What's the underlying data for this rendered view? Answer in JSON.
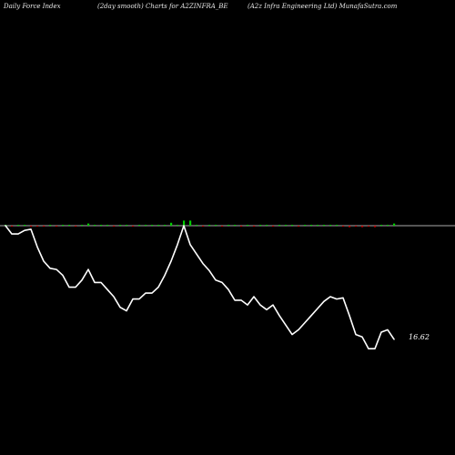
{
  "header": {
    "left": "Daily Force  Index",
    "center": "(2day smooth) Charts for A2ZINFRA_BE",
    "right": "(A2z Infra  Engineering Ltd) MunafaSutra.com"
  },
  "chart_data": {
    "type": "line",
    "title": "(2day smooth) Charts for A2ZINFRA_BE",
    "subtitle": "(A2z Infra  Engineering Ltd) MunafaSutra.com",
    "xlabel": "",
    "ylabel": "",
    "grid": false,
    "zero_line_color": "#aaaaaa",
    "series": [
      {
        "color": "#ffffff",
        "values": [
          0.0,
          -3.5,
          -3.5,
          -2.0,
          -1.5,
          -9.0,
          -15.0,
          -18.0,
          -18.5,
          -21.0,
          -26.0,
          -26.0,
          -23.0,
          -18.5,
          -24.0,
          -24.0,
          -27.0,
          -30.0,
          -34.5,
          -36.0,
          -31.0,
          -31.0,
          -28.5,
          -28.5,
          -26.0,
          -21.0,
          -15.0,
          -8.0,
          0.0,
          -8.0,
          -12.0,
          -16.0,
          -19.0,
          -23.0,
          -24.0,
          -27.0,
          -31.5,
          -31.5,
          -33.5,
          -30.0,
          -33.5,
          -35.5,
          -33.5,
          -38.0,
          -42.0,
          -46.0,
          -44.0,
          -41.0,
          -38.0,
          -35.0,
          -32.0,
          -30.0,
          -31.0,
          -30.5,
          -38.0,
          -46.0,
          -47.0,
          -52.0,
          -52.0,
          -45.0,
          -44.0,
          -48.0
        ]
      }
    ],
    "volume_marks": [
      {
        "v": 0.5,
        "c": "#00cc00"
      },
      {
        "v": -0.5,
        "c": "#cc0000"
      },
      {
        "v": 0.5,
        "c": "#00cc00"
      },
      {
        "v": 0.5,
        "c": "#00cc00"
      },
      {
        "v": -0.5,
        "c": "#cc0000"
      },
      {
        "v": -0.5,
        "c": "#cc0000"
      },
      {
        "v": -0.5,
        "c": "#cc0000"
      },
      {
        "v": 0.5,
        "c": "#00cc00"
      },
      {
        "v": -0.5,
        "c": "#cc0000"
      },
      {
        "v": 0.5,
        "c": "#00cc00"
      },
      {
        "v": 0.5,
        "c": "#00cc00"
      },
      {
        "v": -0.5,
        "c": "#cc0000"
      },
      {
        "v": 0.5,
        "c": "#00cc00"
      },
      {
        "v": 1.5,
        "c": "#00cc00"
      },
      {
        "v": 0.5,
        "c": "#00cc00"
      },
      {
        "v": 0.5,
        "c": "#00cc00"
      },
      {
        "v": 0.5,
        "c": "#00cc00"
      },
      {
        "v": -0.5,
        "c": "#cc0000"
      },
      {
        "v": 0.5,
        "c": "#00cc00"
      },
      {
        "v": 0.5,
        "c": "#00cc00"
      },
      {
        "v": -0.5,
        "c": "#cc0000"
      },
      {
        "v": 0.5,
        "c": "#00cc00"
      },
      {
        "v": 0.5,
        "c": "#00cc00"
      },
      {
        "v": 0.5,
        "c": "#00cc00"
      },
      {
        "v": 0.5,
        "c": "#00cc00"
      },
      {
        "v": 0.5,
        "c": "#00cc00"
      },
      {
        "v": 2.0,
        "c": "#00cc00"
      },
      {
        "v": 0.5,
        "c": "#00cc00"
      },
      {
        "v": 3.5,
        "c": "#00cc00"
      },
      {
        "v": 3.5,
        "c": "#00cc00"
      },
      {
        "v": 0.5,
        "c": "#00cc00"
      },
      {
        "v": -0.5,
        "c": "#cc0000"
      },
      {
        "v": 0.5,
        "c": "#00cc00"
      },
      {
        "v": 0.5,
        "c": "#00cc00"
      },
      {
        "v": -0.5,
        "c": "#cc0000"
      },
      {
        "v": 0.5,
        "c": "#00cc00"
      },
      {
        "v": 0.5,
        "c": "#00cc00"
      },
      {
        "v": -0.5,
        "c": "#cc0000"
      },
      {
        "v": 0.5,
        "c": "#00cc00"
      },
      {
        "v": -0.5,
        "c": "#cc0000"
      },
      {
        "v": 0.5,
        "c": "#00cc00"
      },
      {
        "v": 0.5,
        "c": "#00cc00"
      },
      {
        "v": -0.5,
        "c": "#cc0000"
      },
      {
        "v": 0.5,
        "c": "#00cc00"
      },
      {
        "v": 0.5,
        "c": "#00cc00"
      },
      {
        "v": 0.5,
        "c": "#00cc00"
      },
      {
        "v": -0.5,
        "c": "#cc0000"
      },
      {
        "v": 0.5,
        "c": "#00cc00"
      },
      {
        "v": 0.5,
        "c": "#00cc00"
      },
      {
        "v": 0.5,
        "c": "#00cc00"
      },
      {
        "v": 0.5,
        "c": "#00cc00"
      },
      {
        "v": 0.5,
        "c": "#00cc00"
      },
      {
        "v": 0.5,
        "c": "#00cc00"
      },
      {
        "v": -0.5,
        "c": "#cc0000"
      },
      {
        "v": -1.0,
        "c": "#cc0000"
      },
      {
        "v": -0.5,
        "c": "#cc0000"
      },
      {
        "v": -1.0,
        "c": "#cc0000"
      },
      {
        "v": -0.5,
        "c": "#cc0000"
      },
      {
        "v": -1.0,
        "c": "#cc0000"
      },
      {
        "v": 0.5,
        "c": "#00cc00"
      },
      {
        "v": 0.5,
        "c": "#00cc00"
      },
      {
        "v": 1.5,
        "c": "#00cc00"
      }
    ],
    "last_value_label": "16.62"
  }
}
